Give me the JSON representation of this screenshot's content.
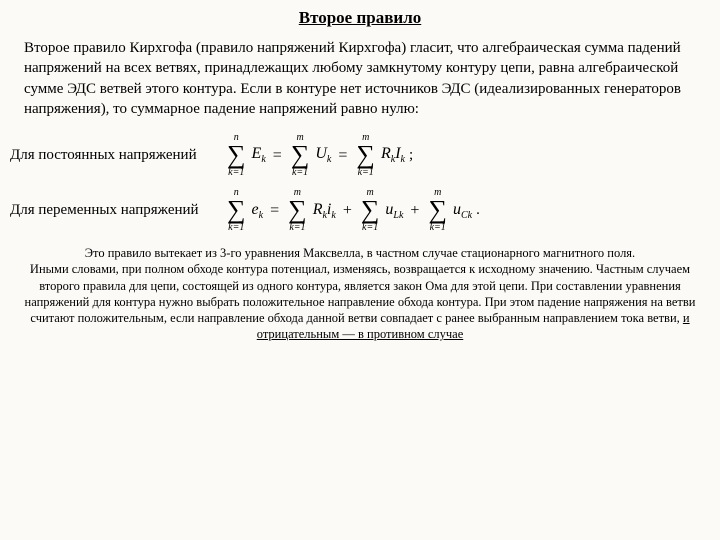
{
  "title": "Второе правило",
  "intro": "Второе правило Кирхгофа (правило напряжений Кирхгофа) гласит, что алгебраическая сумма падений напряжений на всех ветвях, принадлежащих любому замкнутому контуру цепи, равна алгебраической сумме ЭДС ветвей этого контура. Если в контуре нет источников ЭДС (идеализированных генераторов напряжения), то суммарное падение напряжений равно нулю:",
  "label_dc": "Для постоянных напряжений",
  "label_ac": "Для переменных напряжений",
  "limits": {
    "n": "n",
    "m": "m",
    "from": "k=1"
  },
  "dc": {
    "E": "E",
    "U": "U",
    "R": "R",
    "I": "I",
    "k": "k",
    "tail": ";"
  },
  "ac": {
    "e": "e",
    "R": "R",
    "i": "i",
    "uL": "u",
    "Lk": "Lk",
    "uC": "u",
    "Ck": "Ck",
    "k": "k",
    "tail": "."
  },
  "footer_p1": "Это правило вытекает из 3-го уравнения Максвелла, в частном случае стационарного магнитного поля.",
  "footer_p2_a": "Иными словами, при полном обходе контура потенциал, изменяясь, возвращается к исходному значению. Частным случаем второго правила для цепи, состоящей из одного контура, является закон Ома для этой цепи. При составлении уравнения напряжений для контура нужно выбрать положительное направление обхода контура. При этом падение напряжения на ветви считают положительным, если направление обхода данной ветви совпадает с ранее выбранным направлением тока ветви, ",
  "footer_p2_b": "и отрицательным — в противном случае",
  "colors": {
    "bg": "#fcfaf6",
    "text": "#000000"
  }
}
